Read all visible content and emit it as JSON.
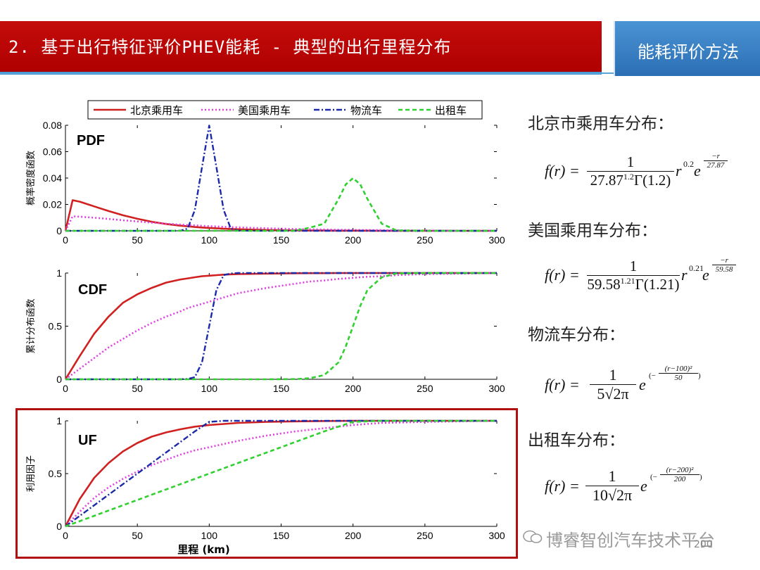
{
  "header": {
    "title": "2. 基于出行特征评价PHEV能耗 - 典型的出行里程分布",
    "side_tab": "能耗评价方法"
  },
  "colors": {
    "title_bg": "#c00000",
    "tab_bg": "#3a7fc4",
    "beijing": "#d02020",
    "usa": "#e040e0",
    "logistics": "#1a2aa8",
    "taxi": "#30d030"
  },
  "legend": [
    "北京乘用车",
    "美国乘用车",
    "物流车",
    "出租车"
  ],
  "chart_data": [
    {
      "type": "line",
      "panel_label": "PDF",
      "ylabel": "概率密度函数",
      "xlim": [
        0,
        300
      ],
      "ylim": [
        0,
        0.08
      ],
      "xticks": [
        "0",
        "50",
        "100",
        "150",
        "200",
        "250",
        "300"
      ],
      "yticks": [
        "0",
        "0.02",
        "0.04",
        "0.06",
        "0.08"
      ],
      "x": [
        0,
        5,
        10,
        20,
        30,
        40,
        50,
        60,
        70,
        80,
        85,
        90,
        95,
        100,
        105,
        110,
        115,
        120,
        140,
        160,
        170,
        180,
        190,
        195,
        200,
        205,
        210,
        220,
        230,
        250,
        300
      ],
      "series": [
        {
          "name": "北京乘用车",
          "values": [
            0,
            0.0232,
            0.0221,
            0.0185,
            0.015,
            0.0118,
            0.0091,
            0.0069,
            0.0052,
            0.0039,
            0.0034,
            0.0029,
            0.0025,
            0.0022,
            0.0019,
            0.0016,
            0.0014,
            0.0012,
            0.0006,
            0.0003,
            0.0002,
            0.0002,
            0.0001,
            0.0001,
            0.0001,
            0.0001,
            0.0001,
            0,
            0,
            0,
            0
          ]
        },
        {
          "name": "美国乘用车",
          "values": [
            0,
            0.011,
            0.0107,
            0.0099,
            0.009,
            0.008,
            0.0071,
            0.0062,
            0.0054,
            0.0047,
            0.0044,
            0.0041,
            0.0038,
            0.0035,
            0.0033,
            0.003,
            0.0028,
            0.0026,
            0.0019,
            0.0014,
            0.0012,
            0.001,
            0.0008,
            0.0008,
            0.0007,
            0.0006,
            0.0006,
            0.0005,
            0.0004,
            0.0002,
            0
          ]
        },
        {
          "name": "物流车",
          "values": [
            0,
            0,
            0,
            0,
            0,
            0,
            0,
            0,
            0,
            0.0001,
            0.0017,
            0.0158,
            0.0484,
            0.0798,
            0.0484,
            0.0158,
            0.0017,
            0.0001,
            0,
            0,
            0,
            0,
            0,
            0,
            0,
            0,
            0,
            0,
            0,
            0,
            0
          ]
        },
        {
          "name": "出租车",
          "values": [
            0,
            0,
            0,
            0,
            0,
            0,
            0,
            0,
            0,
            0,
            0,
            0,
            0,
            0,
            0,
            0,
            0,
            0,
            0,
            0.0001,
            0.0024,
            0.0054,
            0.0242,
            0.0352,
            0.0399,
            0.0352,
            0.0242,
            0.0054,
            0.0004,
            0,
            0
          ]
        }
      ]
    },
    {
      "type": "line",
      "panel_label": "CDF",
      "ylabel": "累计分布函数",
      "xlim": [
        0,
        300
      ],
      "ylim": [
        0,
        1
      ],
      "xticks": [
        "0",
        "50",
        "100",
        "150",
        "200",
        "250",
        "300"
      ],
      "yticks": [
        "0",
        "0.5",
        "1"
      ],
      "x": [
        0,
        10,
        20,
        30,
        40,
        50,
        60,
        70,
        80,
        85,
        90,
        95,
        100,
        105,
        110,
        115,
        120,
        140,
        160,
        170,
        180,
        190,
        195,
        200,
        205,
        210,
        220,
        230,
        250,
        300
      ],
      "series": [
        {
          "name": "北京乘用车",
          "values": [
            0,
            0.22,
            0.43,
            0.59,
            0.72,
            0.8,
            0.86,
            0.91,
            0.94,
            0.95,
            0.96,
            0.97,
            0.975,
            0.98,
            0.985,
            0.988,
            0.99,
            0.995,
            0.998,
            0.999,
            0.999,
            1,
            1,
            1,
            1,
            1,
            1,
            1,
            1,
            1
          ]
        },
        {
          "name": "美国乘用车",
          "values": [
            0,
            0.1,
            0.2,
            0.3,
            0.38,
            0.46,
            0.53,
            0.59,
            0.64,
            0.67,
            0.69,
            0.71,
            0.73,
            0.75,
            0.77,
            0.79,
            0.81,
            0.86,
            0.9,
            0.92,
            0.93,
            0.945,
            0.95,
            0.955,
            0.96,
            0.965,
            0.97,
            0.98,
            0.99,
            1
          ]
        },
        {
          "name": "物流车",
          "values": [
            0,
            0,
            0,
            0,
            0,
            0,
            0,
            0,
            0,
            0.004,
            0.02,
            0.16,
            0.5,
            0.84,
            0.98,
            0.996,
            1,
            1,
            1,
            1,
            1,
            1,
            1,
            1,
            1,
            1,
            1,
            1,
            1,
            1
          ]
        },
        {
          "name": "出租车",
          "values": [
            0,
            0,
            0,
            0,
            0,
            0,
            0,
            0,
            0,
            0,
            0,
            0,
            0,
            0,
            0,
            0,
            0,
            0,
            0.002,
            0.01,
            0.04,
            0.16,
            0.31,
            0.5,
            0.69,
            0.84,
            0.96,
            0.996,
            1,
            1
          ]
        }
      ]
    },
    {
      "type": "line",
      "panel_label": "UF",
      "ylabel": "利用因子",
      "xlabel": "里程 (km)",
      "xlim": [
        0,
        300
      ],
      "ylim": [
        0,
        1
      ],
      "xticks": [
        "0",
        "50",
        "100",
        "150",
        "200",
        "250",
        "300"
      ],
      "yticks": [
        "0",
        "0.5",
        "1"
      ],
      "x": [
        0,
        10,
        20,
        30,
        40,
        50,
        60,
        70,
        80,
        90,
        100,
        110,
        120,
        140,
        160,
        180,
        200,
        220,
        250,
        300
      ],
      "series": [
        {
          "name": "北京乘用车",
          "values": [
            0,
            0.26,
            0.46,
            0.6,
            0.71,
            0.79,
            0.85,
            0.89,
            0.92,
            0.945,
            0.96,
            0.97,
            0.98,
            0.99,
            0.995,
            0.998,
            1,
            1,
            1,
            1
          ]
        },
        {
          "name": "美国乘用车",
          "values": [
            0,
            0.14,
            0.27,
            0.37,
            0.45,
            0.52,
            0.58,
            0.63,
            0.68,
            0.72,
            0.75,
            0.78,
            0.81,
            0.86,
            0.9,
            0.93,
            0.96,
            0.98,
            0.99,
            1
          ]
        },
        {
          "name": "物流车",
          "values": [
            0,
            0.1,
            0.2,
            0.3,
            0.4,
            0.5,
            0.6,
            0.7,
            0.8,
            0.9,
            0.99,
            1,
            1,
            1,
            1,
            1,
            1,
            1,
            1,
            1
          ]
        },
        {
          "name": "出租车",
          "values": [
            0,
            0.05,
            0.1,
            0.15,
            0.2,
            0.25,
            0.3,
            0.35,
            0.4,
            0.45,
            0.5,
            0.55,
            0.6,
            0.7,
            0.8,
            0.9,
            0.99,
            1,
            1,
            1
          ]
        }
      ]
    }
  ],
  "formulas": [
    {
      "label": "北京市乘用车分布：",
      "lhs": "f(r) =",
      "num": "1",
      "den_base": "27.87",
      "den_exp": "1.2",
      "den_tail": "Γ(1.2)",
      "r_exp": "0.2",
      "e_num": "−r",
      "e_den": "27.87"
    },
    {
      "label": "美国乘用车分布：",
      "lhs": "f(r) =",
      "num": "1",
      "den_base": "59.58",
      "den_exp": "1.21",
      "den_tail": "Γ(1.21)",
      "r_exp": "0.21",
      "e_num": "−r",
      "e_den": "59.58"
    },
    {
      "label": "物流车分布：",
      "lhs": "f(r) =",
      "num": "1",
      "den": "5√2π",
      "e_open": "(−",
      "e_num": "(r−100)²",
      "e_den": "50",
      "e_close": ")"
    },
    {
      "label": "出租车分布：",
      "lhs": "f(r) =",
      "num": "1",
      "den": "10√2π",
      "e_open": "(−",
      "e_num": "(r−200)²",
      "e_den": "200",
      "e_close": ")"
    }
  ],
  "watermark": "博睿智创汽车技术平台",
  "page_number": "200"
}
